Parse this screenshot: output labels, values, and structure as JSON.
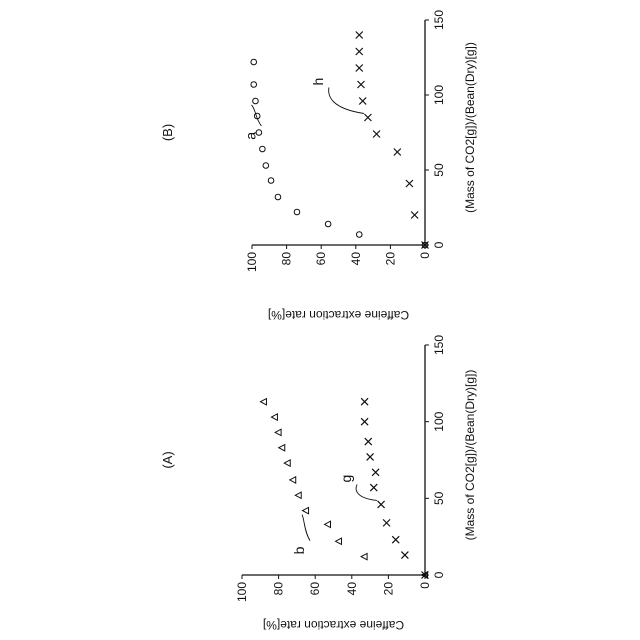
{
  "chart_data": [
    {
      "type": "scatter",
      "title": "(A)",
      "xlabel": "(Mass of CO2[g])/(Bean(Dry)[g])",
      "ylabel": "Caffeine extraction rate[%]",
      "xlim": [
        0,
        150
      ],
      "ylim": [
        0,
        100
      ],
      "xticks": [
        0,
        50,
        100,
        150
      ],
      "yticks": [
        0,
        20,
        40,
        60,
        80,
        100
      ],
      "grid": false,
      "series": [
        {
          "name": "b",
          "marker": "triangle",
          "x": [
            0,
            12,
            22,
            33,
            42,
            52,
            62,
            73,
            83,
            93,
            103,
            113
          ],
          "y": [
            0,
            33,
            47,
            53,
            65,
            69,
            72,
            75,
            78,
            80,
            82,
            88
          ],
          "annot_index": 4
        },
        {
          "name": "g",
          "marker": "cross",
          "x": [
            0,
            13,
            23,
            34,
            46,
            57,
            67,
            77,
            87,
            100,
            113
          ],
          "y": [
            0,
            11,
            16,
            21,
            24,
            28,
            27,
            30,
            31,
            33,
            33
          ],
          "annot_index": 4
        }
      ]
    },
    {
      "type": "scatter",
      "title": "(B)",
      "xlabel": "(Mass of CO2[g])/(Bean(Dry)[g])",
      "ylabel": "Caffeine extraction rate[%]",
      "xlim": [
        0,
        150
      ],
      "ylim": [
        0,
        100
      ],
      "xticks": [
        0,
        50,
        100,
        150
      ],
      "yticks": [
        0,
        20,
        40,
        60,
        80,
        100
      ],
      "grid": false,
      "series": [
        {
          "name": "a",
          "marker": "circle",
          "x": [
            0,
            7,
            14,
            22,
            32,
            43,
            53,
            64,
            75,
            86,
            96,
            107,
            122
          ],
          "y": [
            0,
            38,
            56,
            74,
            85,
            89,
            92,
            94,
            96,
            97,
            98,
            99,
            99
          ],
          "annot_index": 10
        },
        {
          "name": "h",
          "marker": "cross",
          "x": [
            0,
            20,
            41,
            62,
            74,
            85,
            96,
            107,
            118,
            129,
            140
          ],
          "y": [
            0,
            6,
            9,
            16,
            28,
            33,
            36,
            37,
            38,
            38,
            38
          ],
          "annot_index": 5
        }
      ]
    }
  ]
}
